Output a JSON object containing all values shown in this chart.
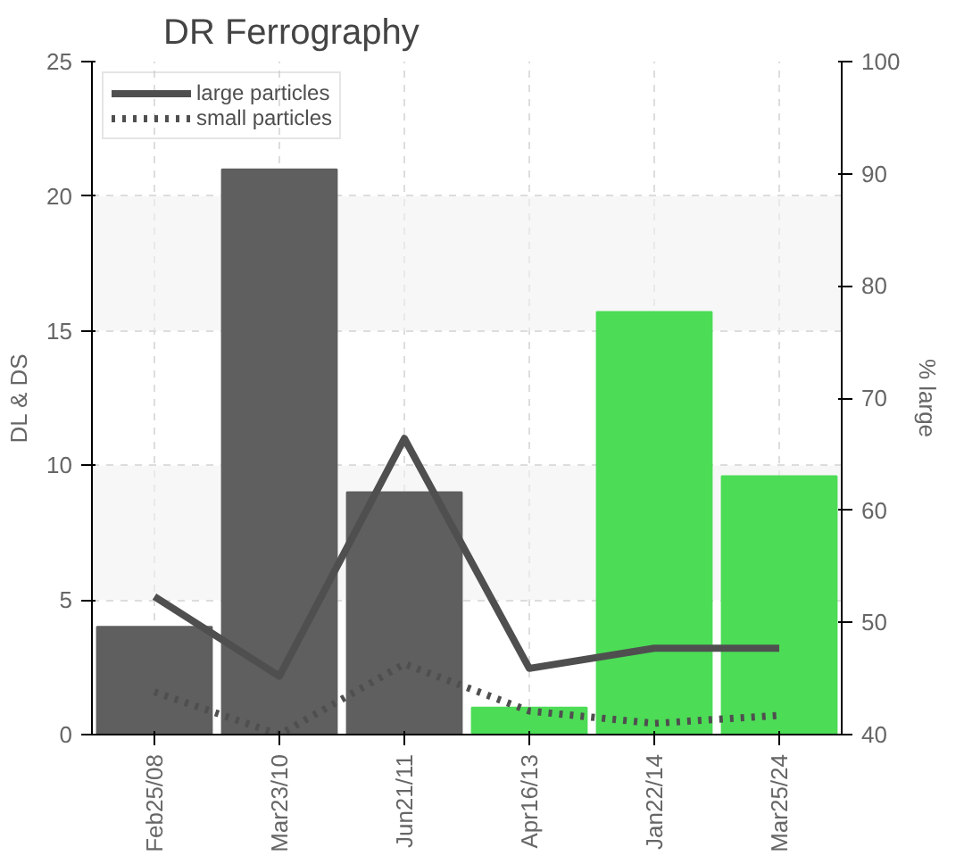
{
  "chart_data": {
    "type": "bar",
    "title": "DR Ferrography",
    "ylabel": "DL & DS",
    "y2label": "% large",
    "categories": [
      "Feb25/08",
      "Mar23/10",
      "Jun21/11",
      "Apr16/13",
      "Jan22/14",
      "Mar25/24"
    ],
    "series": [
      {
        "colors": [
          "#5f5f5f",
          "#5f5f5f",
          "#5f5f5f",
          "#4cdc56",
          "#4cdc56",
          "#4cdc56"
        ],
        "values": [
          4,
          21,
          9,
          1,
          15.7,
          9.6
        ]
      },
      {
        "type": "line",
        "name": "large particles",
        "color": "#4f4f4f",
        "axis": "y2",
        "line_style": "solid",
        "values": [
          52.3,
          45.2,
          66.4,
          45.9,
          47.7,
          47.7
        ]
      },
      {
        "type": "line",
        "name": "small particles",
        "color": "#4f4f4f",
        "axis": "y2",
        "line_style": "dotted",
        "values": [
          43.8,
          40,
          46.3,
          42.1,
          41,
          41.7
        ]
      }
    ],
    "ylim": [
      0,
      25
    ],
    "yticks": [
      0,
      5,
      10,
      15,
      20,
      25
    ],
    "y2lim": [
      40,
      100
    ],
    "y2ticks": [
      40,
      50,
      60,
      70,
      80,
      90,
      100
    ],
    "grid": true,
    "legend": "top left"
  }
}
